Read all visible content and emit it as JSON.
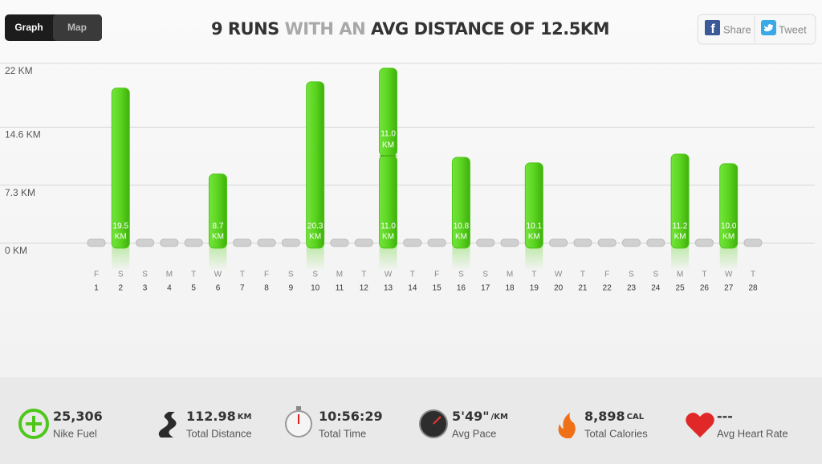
{
  "tabs": [
    "Graph",
    "Map"
  ],
  "title": {
    "lead": "9 RUNS",
    "mid": "WITH AN",
    "tail": "AVG DISTANCE OF 12.5KM"
  },
  "share_buttons": [
    "Share",
    "Tweet"
  ],
  "chart_data": {
    "type": "bar",
    "categories": [
      "1",
      "2",
      "3",
      "4",
      "5",
      "6",
      "7",
      "8",
      "9",
      "10",
      "11",
      "12",
      "13",
      "14",
      "15",
      "16",
      "17",
      "18",
      "19",
      "20",
      "21",
      "22",
      "23",
      "24",
      "25",
      "26",
      "27",
      "28"
    ],
    "weekdays": [
      "F",
      "S",
      "S",
      "M",
      "T",
      "W",
      "T",
      "F",
      "S",
      "S",
      "M",
      "T",
      "W",
      "T",
      "F",
      "S",
      "S",
      "M",
      "T",
      "W",
      "T",
      "F",
      "S",
      "S",
      "M",
      "T",
      "W",
      "T"
    ],
    "unit": "KM",
    "series": [
      {
        "color": "#4fc71a",
        "values": [
          null,
          19.5,
          null,
          null,
          null,
          8.7,
          null,
          null,
          null,
          20.3,
          null,
          null,
          11.0,
          null,
          null,
          10.8,
          null,
          null,
          10.1,
          null,
          null,
          null,
          null,
          null,
          11.2,
          null,
          10.0,
          null
        ],
        "value_labels": [
          null,
          "19.5",
          null,
          null,
          null,
          "8.7",
          null,
          null,
          null,
          "20.3",
          null,
          null,
          "11.0",
          null,
          null,
          "10.8",
          null,
          null,
          "10.1",
          null,
          null,
          null,
          null,
          null,
          "11.2",
          null,
          "10.0",
          null
        ]
      },
      {
        "color": "#4fc71a",
        "values": [
          null,
          null,
          null,
          null,
          null,
          null,
          null,
          null,
          null,
          null,
          null,
          null,
          11.0,
          null,
          null,
          null,
          null,
          null,
          null,
          null,
          null,
          null,
          null,
          null,
          null,
          null,
          null,
          null
        ],
        "value_labels": [
          null,
          null,
          null,
          null,
          null,
          null,
          null,
          null,
          null,
          null,
          null,
          null,
          "11.0",
          null,
          null,
          null,
          null,
          null,
          null,
          null,
          null,
          null,
          null,
          null,
          null,
          null,
          null,
          null
        ]
      }
    ],
    "ylim": [
      0,
      22
    ],
    "yticks": [
      {
        "value": 0,
        "label": "0 KM"
      },
      {
        "value": 7.3,
        "label": "7.3 KM"
      },
      {
        "value": 14.6,
        "label": "14.6 KM"
      },
      {
        "value": 22,
        "label": "22 KM"
      }
    ],
    "grid": true
  },
  "stats": [
    {
      "value": "25,306",
      "label": "Nike Fuel"
    },
    {
      "value": "112.98",
      "unit": "KM",
      "label": "Total Distance"
    },
    {
      "value": "10:56:29",
      "label": "Total Time"
    },
    {
      "value": "5'49\"",
      "unit": "/KM",
      "label": "Avg Pace"
    },
    {
      "value": "8,898",
      "unit": "CAL",
      "label": "Total Calories"
    },
    {
      "value": "---",
      "label": "Avg Heart Rate"
    }
  ]
}
